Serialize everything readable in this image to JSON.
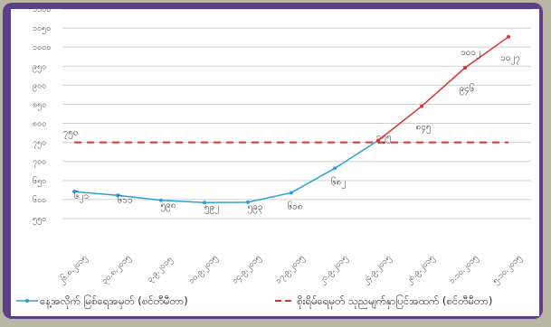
{
  "chart_data": {
    "type": "line",
    "title": "",
    "xlabel": "",
    "ylabel": "",
    "y_tick_labels": [
      "၁၁၀၀",
      "၁၀၅၀",
      "၁၀၀၀",
      "၉၅၀",
      "၉၀၀",
      "၈၅၀",
      "၈၀၀",
      "၇၅၀",
      "၇၀၀",
      "၆၅၀",
      "၆၀၀",
      "၅၅၀"
    ],
    "y_tick_values": [
      1100,
      1050,
      1000,
      950,
      900,
      850,
      800,
      750,
      700,
      650,
      600,
      550
    ],
    "ylim": [
      550,
      1100
    ],
    "categories": [
      "၂၆.၈.၂၀၁၅",
      "၃၀.၈.၂၀၁၅",
      "၃.၉.၂၀၁၅",
      "၁၀.၉.၂၀၁၅",
      "၁၄.၉.၂၀၁၅",
      "၁၇.၉.၂၀၁၅",
      "၂၁.၉.၂၀၁၅",
      "၂၄.၉.၂၀၁၅",
      "၂၈.၉.၂၀၁၅",
      "၁.၁၀.၂၀၁၅",
      "၅.၁၀.၂၀၁၅"
    ],
    "series": [
      {
        "name": "နေ့အလိုက် မြစ်ရေအမှတ် (စင်တီမီတာ)",
        "color": "#2d9fd8",
        "values": [
          621,
          611,
          598,
          592,
          593,
          618,
          682,
          755,
          null,
          null,
          null
        ],
        "labels": [
          "၆၂၁",
          "၆၁၁",
          "၅၉၈",
          "၅၉၂",
          "၅၉၃",
          "၆၁၈",
          "၆၈၂",
          "၇၅၅",
          "",
          "",
          ""
        ]
      },
      {
        "name": "",
        "color": "#e03030",
        "values": [
          null,
          null,
          null,
          null,
          null,
          null,
          null,
          755,
          845,
          946,
          1027
        ],
        "labels": [
          "",
          "",
          "",
          "",
          "",
          "",
          "",
          "",
          "၈၄၅",
          "၉၄၆",
          "၁၀၂၇"
        ]
      },
      {
        "name": "စိုးရိမ်ရေမှတ် သုညမျက်နှာပြင်အထက် (စင်တီမီတာ)",
        "color": "#e03030",
        "dashed": true,
        "values": [
          750,
          750,
          750,
          750,
          750,
          750,
          750,
          750,
          750,
          750,
          750
        ],
        "labels": [
          "၇၅၀",
          "",
          "",
          "",
          "",
          "",
          "",
          "",
          "",
          "",
          ""
        ]
      }
    ],
    "extra_labels": [
      {
        "category_index": 9,
        "value": 1012,
        "text": "၁၀၁၂"
      }
    ],
    "legend_position": "bottom",
    "grid": true
  }
}
